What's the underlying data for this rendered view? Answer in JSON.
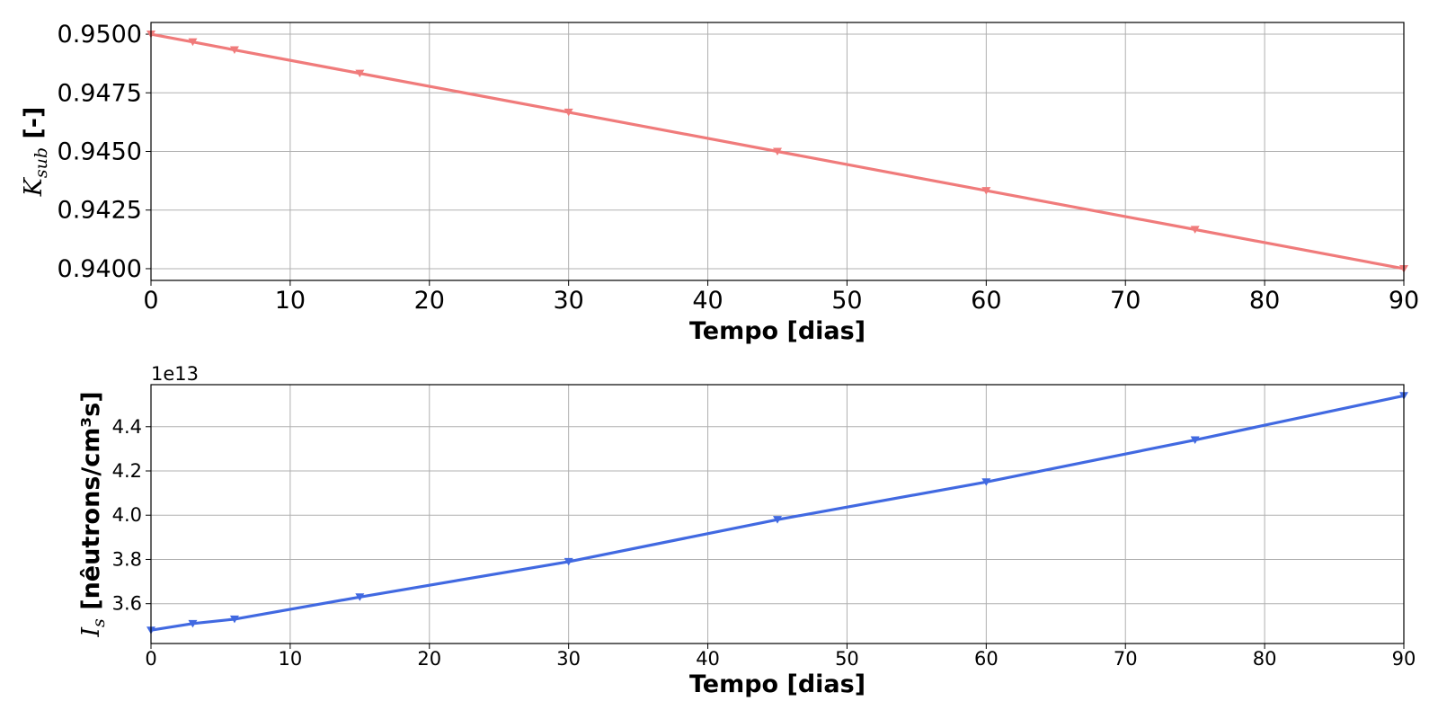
{
  "chart_data": [
    {
      "type": "line",
      "xlabel": "Tempo [dias]",
      "ylabel": {
        "symbol": "K",
        "subscript": "sub",
        "unit": " [-]"
      },
      "xlim": [
        0,
        90
      ],
      "ylim": [
        0.9395,
        0.9505
      ],
      "xticks": [
        "0",
        "10",
        "20",
        "30",
        "40",
        "50",
        "60",
        "70",
        "80",
        "90"
      ],
      "yticks": [
        "0.9400",
        "0.9425",
        "0.9450",
        "0.9475",
        "0.9500"
      ],
      "grid": true,
      "marker": "triangle-down",
      "color": "#f07b7b",
      "x": [
        0,
        3,
        6,
        15,
        30,
        45,
        60,
        75,
        90
      ],
      "y": [
        0.95,
        0.94967,
        0.94933,
        0.94833,
        0.94667,
        0.945,
        0.94333,
        0.94167,
        0.94
      ]
    },
    {
      "type": "line",
      "xlabel": "Tempo [dias]",
      "ylabel": {
        "symbol": "I",
        "subscript": "s",
        "unit": " [nêutrons/cm³s]"
      },
      "offset_text": "1e13",
      "xlim": [
        0,
        90
      ],
      "ylim": [
        3.42,
        4.59
      ],
      "xticks": [
        "0",
        "10",
        "20",
        "30",
        "40",
        "50",
        "60",
        "70",
        "80",
        "90"
      ],
      "yticks": [
        "3.6",
        "3.8",
        "4.0",
        "4.2",
        "4.4"
      ],
      "grid": true,
      "marker": "triangle-down",
      "color": "#4169e1",
      "x": [
        0,
        3,
        6,
        15,
        30,
        45,
        60,
        75,
        90
      ],
      "y": [
        3.48,
        3.51,
        3.53,
        3.63,
        3.79,
        3.98,
        4.15,
        4.34,
        4.54
      ]
    }
  ]
}
